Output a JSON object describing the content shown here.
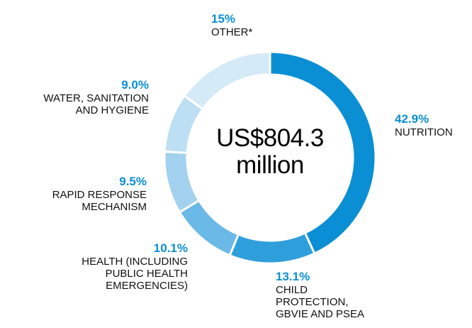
{
  "chart_data": {
    "type": "pie",
    "center_label": [
      "US$804.3",
      "million"
    ],
    "slices": [
      {
        "percent_label": "42.9%",
        "label": "NUTRITION",
        "value": 42.9,
        "color": "#0b8fd4"
      },
      {
        "percent_label": "13.1%",
        "label": "CHILD\nPROTECTION,\nGBVIE AND PSEA",
        "value": 13.1,
        "color": "#2f9fdc"
      },
      {
        "percent_label": "10.1%",
        "label": "HEALTH (INCLUDING\nPUBLIC HEALTH\nEMERGENCIES)",
        "value": 10.1,
        "color": "#6bb9e6"
      },
      {
        "percent_label": "9.5%",
        "label": "RAPID RESPONSE\nMECHANISM",
        "value": 9.5,
        "color": "#a2d2ef"
      },
      {
        "percent_label": "9.0%",
        "label": "WATER, SANITATION\nAND HYGIENE",
        "value": 9.0,
        "color": "#bcdff3"
      },
      {
        "percent_label": "15%",
        "label": "OTHER*",
        "value": 15,
        "color": "#d5eaf7"
      }
    ]
  }
}
